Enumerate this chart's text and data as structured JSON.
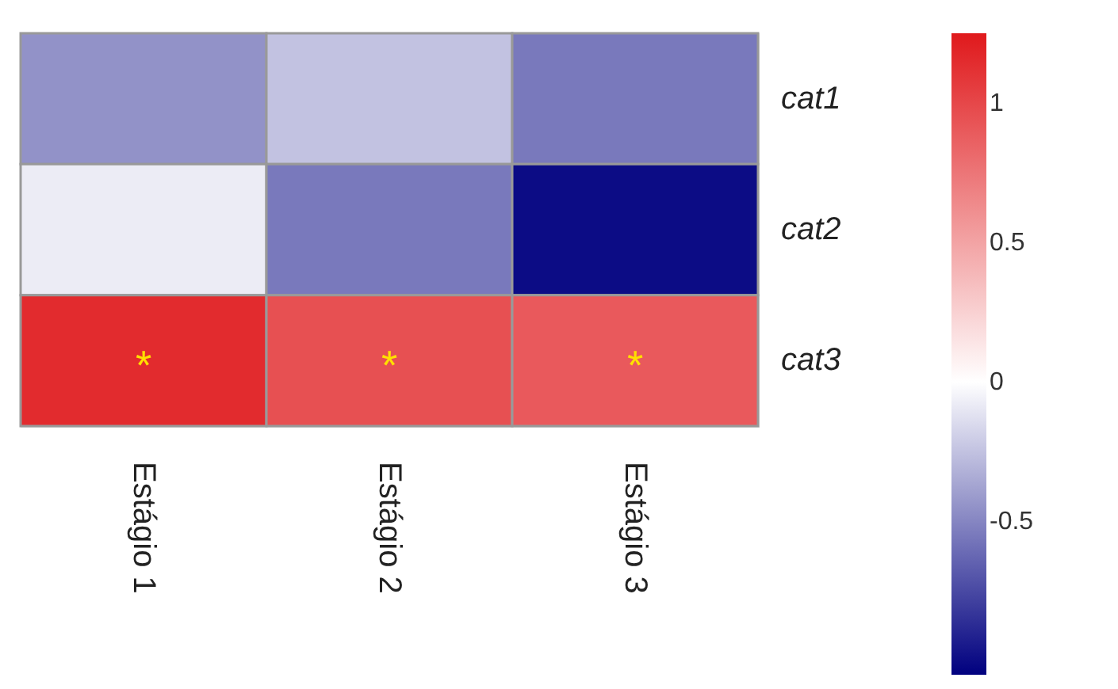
{
  "chart_data": {
    "type": "heatmap",
    "categories": [
      "Estágio 1",
      "Estágio 2",
      "Estágio 3"
    ],
    "y_categories": [
      "cat1",
      "cat2",
      "cat3"
    ],
    "cells": [
      [
        -0.45,
        -0.25,
        -0.55
      ],
      [
        -0.08,
        -0.55,
        -1.0
      ],
      [
        1.15,
        0.95,
        0.9
      ]
    ],
    "cell_labels": [
      [
        null,
        null,
        null
      ],
      [
        null,
        null,
        null
      ],
      [
        "*",
        "*",
        "*"
      ]
    ],
    "clim": [
      -1.05,
      1.25
    ],
    "cticks": [
      1,
      0.5,
      0,
      -0.5
    ]
  }
}
